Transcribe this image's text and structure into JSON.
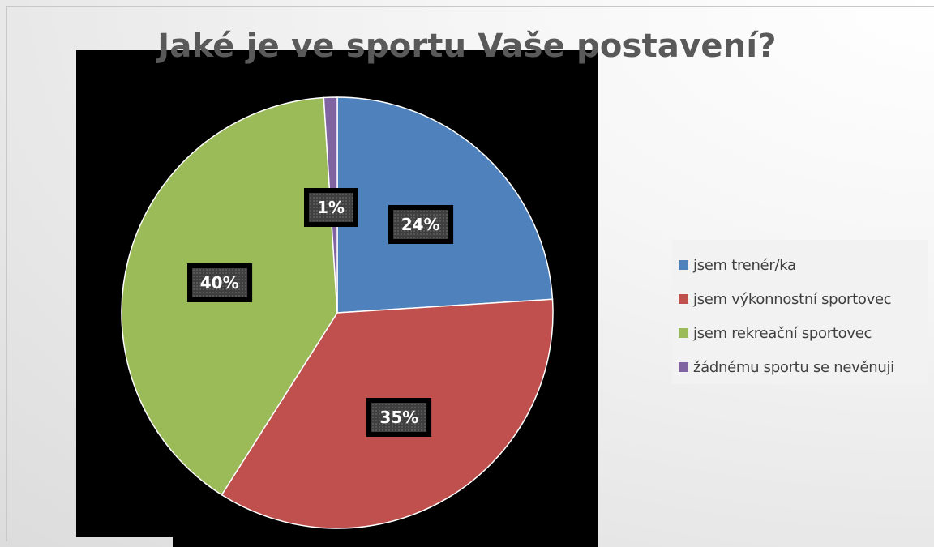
{
  "chart_data": {
    "type": "pie",
    "title": "Jaké je ve sportu Vaše postavení?",
    "categories": [
      "jsem trenér/ka",
      "jsem výkonnostní sportovec",
      "jsem rekreační sportovec",
      "žádnému sportu se nevěnuji"
    ],
    "values": [
      24,
      35,
      40,
      1
    ],
    "labels": [
      "24%",
      "35%",
      "40%",
      "1%"
    ],
    "colors": [
      "#4f81bd",
      "#c0504d",
      "#9bbb59",
      "#8064a2"
    ],
    "legend": "right"
  }
}
